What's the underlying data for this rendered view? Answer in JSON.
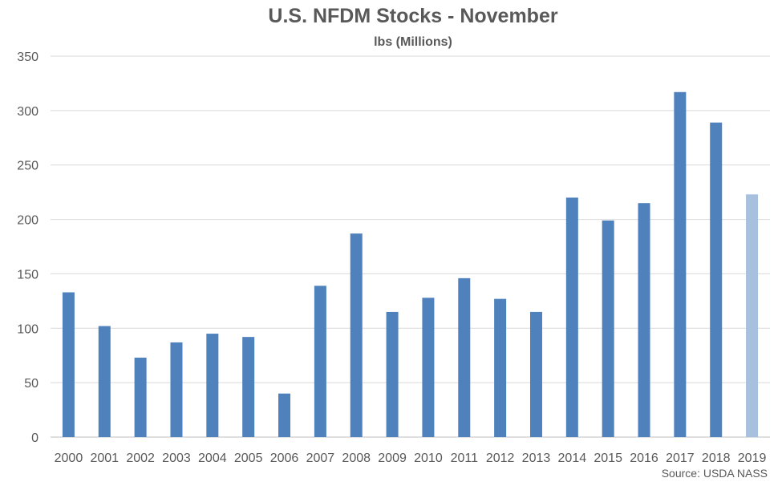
{
  "chart_data": {
    "type": "bar",
    "title": "U.S. NFDM Stocks - November",
    "subtitle": "lbs (Millions)",
    "source": "Source: USDA NASS",
    "xlabel": "",
    "ylabel": "",
    "ylim": [
      0,
      350
    ],
    "yticks": [
      0,
      50,
      100,
      150,
      200,
      250,
      300,
      350
    ],
    "grid": true,
    "legend": "none",
    "categories": [
      "2000",
      "2001",
      "2002",
      "2003",
      "2004",
      "2005",
      "2006",
      "2007",
      "2008",
      "2009",
      "2010",
      "2011",
      "2012",
      "2013",
      "2014",
      "2015",
      "2016",
      "2017",
      "2018",
      "2019"
    ],
    "series": [
      {
        "values": [
          133,
          102,
          73,
          87,
          95,
          92,
          40,
          139,
          187,
          115,
          128,
          146,
          127,
          115,
          220,
          199,
          215,
          317,
          289,
          223
        ],
        "color": "#4F81BD",
        "highlight_color": "#A7C0DE",
        "highlight_index": 19
      }
    ]
  }
}
